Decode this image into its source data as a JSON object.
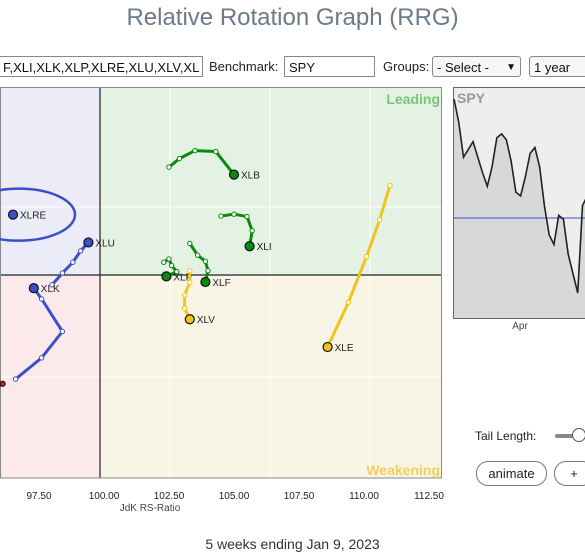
{
  "title": "Relative Rotation Graph (RRG)",
  "symbols_value": "F,XLI,XLK,XLP,XLRE,XLU,XLV,XL",
  "benchmark_label": "Benchmark:",
  "benchmark_value": "SPY",
  "groups_label": "Groups:",
  "groups_value": "- Select -",
  "period_value": "1 year",
  "tail_length_label": "Tail Length:",
  "animate_label": "animate",
  "plus_label": "+",
  "footer": "5 weeks ending Jan 9, 2023",
  "colors": {
    "leading": "#e3f2e3",
    "weakening": "#f8f5e6",
    "lagging": "#fbe9ec",
    "improving": "#ecebf8",
    "green": "#0a8a0a",
    "yellow": "#f0c419",
    "blue": "#3b50c8",
    "red": "#e41a1c"
  },
  "chart_data": {
    "type": "scatter",
    "xlabel": "JdK RS-Ratio",
    "xlim": [
      96.0,
      113.0
    ],
    "ylim": [
      96.0,
      104.3
    ],
    "center": [
      100,
      100
    ],
    "xticks": [
      "97.50",
      "100.00",
      "102.50",
      "105.00",
      "107.50",
      "110.00",
      "112.50"
    ],
    "quadrants": {
      "top_right": "Leading",
      "bottom_right": "Weakening"
    },
    "series": [
      {
        "name": "XLB",
        "color": "#0a8a0a",
        "points": [
          [
            102.5,
            102.6
          ],
          [
            102.9,
            102.78
          ],
          [
            103.5,
            102.95
          ],
          [
            104.3,
            102.93
          ],
          [
            105.0,
            102.44
          ]
        ]
      },
      {
        "name": "XLI",
        "color": "#0a8a0a",
        "points": [
          [
            104.5,
            101.56
          ],
          [
            105.0,
            101.6
          ],
          [
            105.5,
            101.55
          ],
          [
            105.7,
            101.25
          ],
          [
            105.6,
            100.92
          ]
        ]
      },
      {
        "name": "XLF",
        "color": "#0a8a0a",
        "points": [
          [
            103.3,
            100.98
          ],
          [
            103.6,
            100.73
          ],
          [
            103.9,
            100.6
          ],
          [
            104.0,
            100.4
          ],
          [
            103.9,
            100.16
          ]
        ]
      },
      {
        "name": "XLP",
        "color": "#0a8a0a",
        "points": [
          [
            102.3,
            100.58
          ],
          [
            102.5,
            100.65
          ],
          [
            102.6,
            100.51
          ],
          [
            102.8,
            100.38
          ],
          [
            102.4,
            100.28
          ]
        ]
      },
      {
        "name": "XLV",
        "color": "#f0c419",
        "points": [
          [
            103.3,
            100.4
          ],
          [
            103.3,
            100.15
          ],
          [
            103.1,
            99.88
          ],
          [
            103.1,
            99.6
          ],
          [
            103.3,
            99.37
          ]
        ]
      },
      {
        "name": "XLE",
        "color": "#f0c419",
        "points": [
          [
            111.0,
            102.21
          ],
          [
            110.6,
            101.48
          ],
          [
            110.1,
            100.7
          ],
          [
            109.4,
            99.73
          ],
          [
            108.6,
            98.78
          ]
        ]
      },
      {
        "name": "XLU",
        "color": "#3b50c8",
        "points": [
          [
            98.0,
            100.1
          ],
          [
            98.4,
            100.35
          ],
          [
            98.8,
            100.58
          ],
          [
            99.1,
            100.82
          ],
          [
            99.4,
            101.0
          ]
        ]
      },
      {
        "name": "XLK",
        "color": "#3b50c8",
        "points": [
          [
            96.6,
            98.1
          ],
          [
            97.6,
            98.55
          ],
          [
            98.4,
            99.11
          ],
          [
            97.6,
            99.8
          ],
          [
            97.3,
            100.03
          ]
        ]
      },
      {
        "name": "XLRE",
        "color": "#3b50c8",
        "points": [
          [
            96.5,
            101.59
          ]
        ]
      },
      {
        "name": "",
        "color": "#e41a1c",
        "points": [
          [
            95.6,
            97.85
          ],
          [
            96.1,
            98.0
          ]
        ]
      }
    ],
    "circled": "XLRE",
    "spy_inset": {
      "title": "SPY",
      "xlabel": "Apr",
      "values": [
        100,
        88,
        70,
        74,
        78,
        70,
        62,
        55,
        65,
        80,
        82,
        79,
        68,
        52,
        50,
        60,
        72,
        75,
        65,
        45,
        30,
        25,
        40,
        38,
        20,
        10,
        0,
        45,
        50,
        30
      ]
    }
  }
}
